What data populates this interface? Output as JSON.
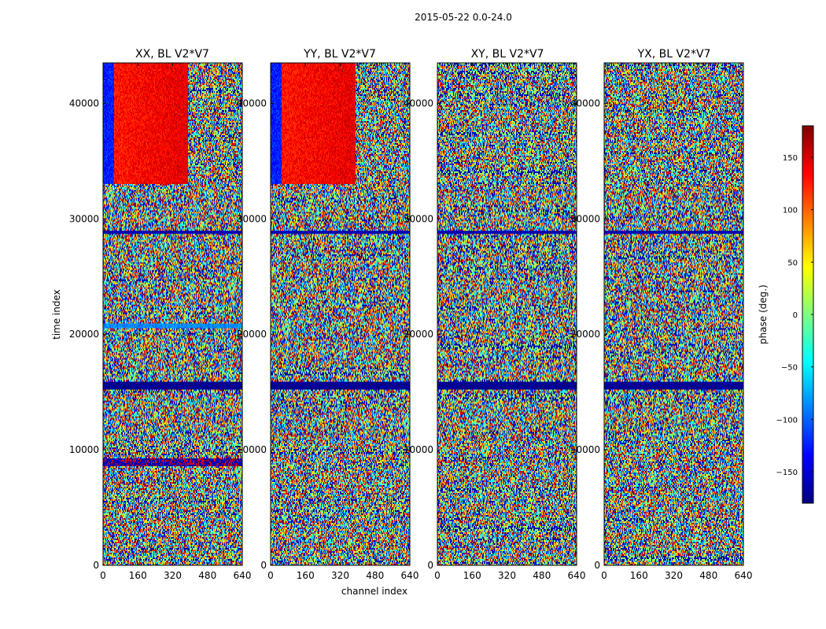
{
  "chart_data": {
    "type": "heatmap",
    "suptitle": "2015-05-22 0.0-24.0",
    "panels": [
      {
        "title": "XX, BL V2*V7",
        "pol": "XX"
      },
      {
        "title": "YY, BL V2*V7",
        "pol": "YY"
      },
      {
        "title": "XY, BL V2*V7",
        "pol": "XY"
      },
      {
        "title": "YX, BL V2*V7",
        "pol": "YX"
      }
    ],
    "xlabel": "channel index",
    "ylabel": "time index",
    "xlim": [
      0,
      640
    ],
    "ylim": [
      0,
      43500
    ],
    "xticks": [
      0,
      160,
      320,
      480,
      640
    ],
    "xtick_labels": [
      "0",
      "160",
      "320",
      "480",
      "640"
    ],
    "yticks": [
      0,
      10000,
      20000,
      30000,
      40000
    ],
    "ytick_labels": [
      "0",
      "10000",
      "20000",
      "30000",
      "40000"
    ],
    "colorbar": {
      "label": "phase (deg.)",
      "vmin": -180,
      "vmax": 180,
      "ticks": [
        150,
        100,
        50,
        0,
        -50,
        -100,
        -150
      ],
      "tick_labels": [
        "150",
        "100",
        "50",
        "0",
        "−50",
        "−100",
        "−150"
      ],
      "colormap": "jet",
      "colors": [
        "#00007f",
        "#0000ff",
        "#007fff",
        "#00ffff",
        "#7fff7f",
        "#ffff00",
        "#ff7f00",
        "#ff0000",
        "#7f0000"
      ]
    },
    "features": {
      "dark_band_time_range": [
        15200,
        15900
      ],
      "gap_band_time_range": [
        28700,
        29000
      ],
      "coherent_phase_time_range": [
        33000,
        43500
      ],
      "coherent_phase_channel_range": [
        0,
        390
      ],
      "coherent_phase_panels": [
        "XX",
        "YY"
      ],
      "xx_blue_band_time_range": [
        20500,
        21000
      ],
      "xx_dark_band_time_range": [
        8500,
        9200
      ]
    }
  }
}
